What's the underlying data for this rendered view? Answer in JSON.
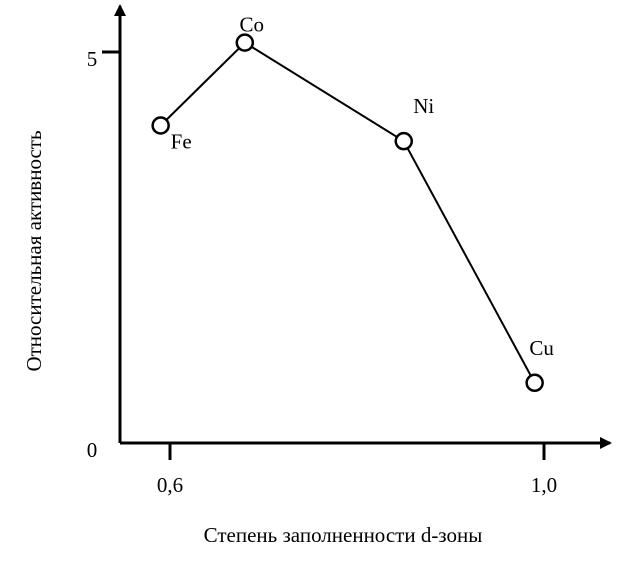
{
  "chart_data": {
    "type": "line",
    "title": "",
    "xlabel": "Степень заполненности d-зоны",
    "ylabel": "Относительная активность",
    "x_tick_labels": [
      "0,6",
      "1,0"
    ],
    "y_tick_labels": [
      "0",
      "5"
    ],
    "xlim": [
      0.5,
      1.1
    ],
    "ylim": [
      0,
      5
    ],
    "grid": false,
    "series": [
      {
        "points": [
          {
            "label": "Fe",
            "x": 0.59,
            "y": 4.06
          },
          {
            "label": "Co",
            "x": 0.68,
            "y": 5.12
          },
          {
            "label": "Ni",
            "x": 0.85,
            "y": 3.86
          },
          {
            "label": "Cu",
            "x": 0.99,
            "y": 0.77
          }
        ]
      }
    ],
    "colors": {
      "line": "#000000",
      "marker_fill": "#ffffff",
      "background": "#ffffff"
    }
  }
}
